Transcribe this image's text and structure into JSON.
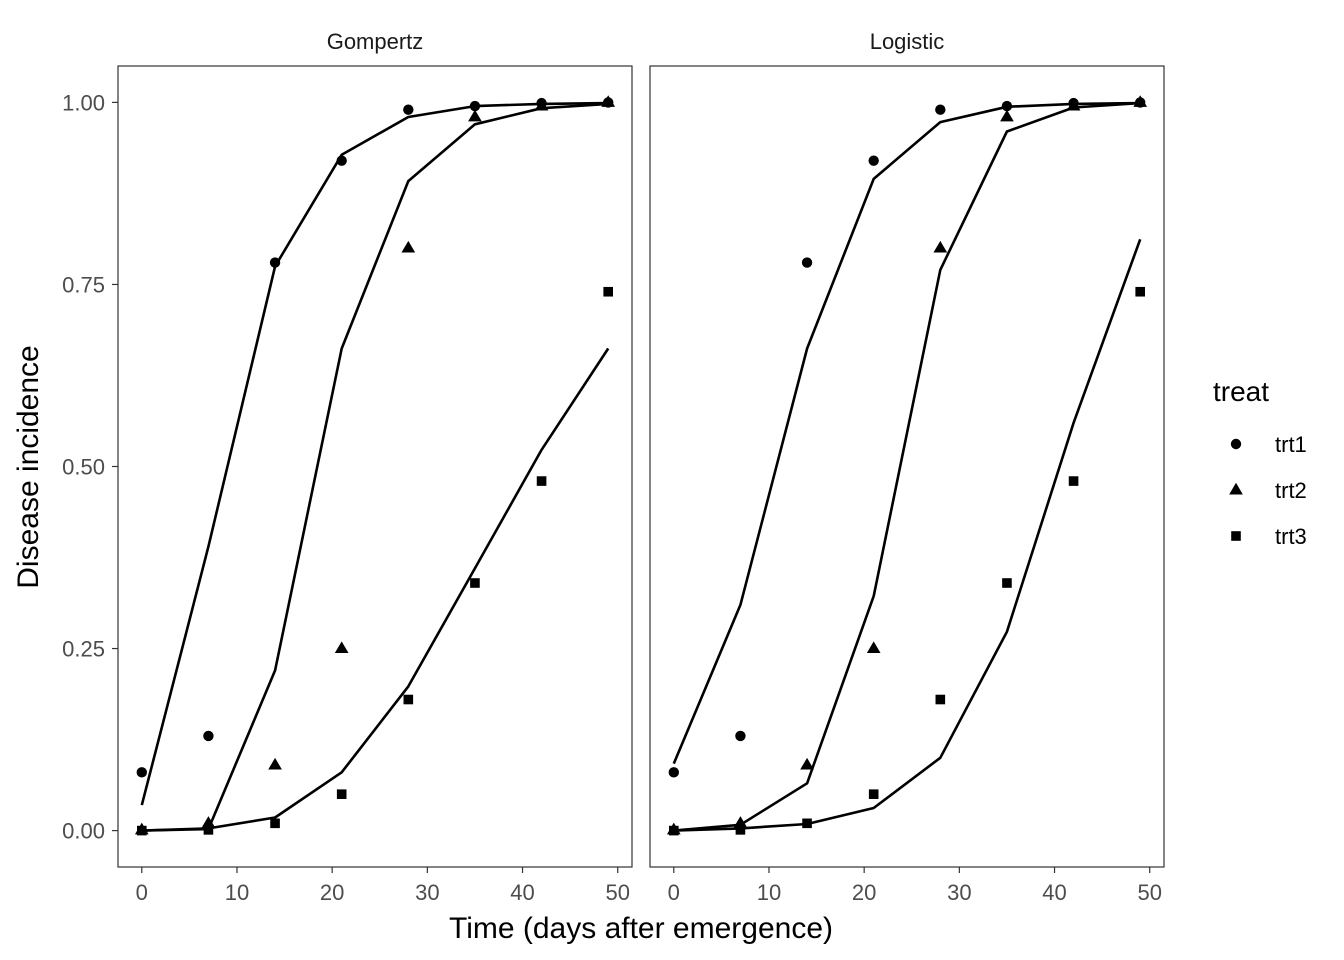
{
  "chart_data": {
    "type": "scatter",
    "xlabel": "Time (days after emergence)",
    "ylabel": "Disease incidence",
    "xlim": [
      -2.5,
      51.5
    ],
    "ylim": [
      -0.05,
      1.05
    ],
    "x_ticks": [
      0,
      10,
      20,
      30,
      40,
      50
    ],
    "y_ticks": [
      0,
      0.25,
      0.5,
      0.75,
      1.0
    ],
    "y_tick_labels": [
      "0.00",
      "0.25",
      "0.50",
      "0.75",
      "1.00"
    ],
    "grid": false,
    "legend": {
      "title": "treat",
      "placement": "right",
      "entries": [
        {
          "label": "trt1",
          "shape": "circle"
        },
        {
          "label": "trt2",
          "shape": "triangle"
        },
        {
          "label": "trt3",
          "shape": "square"
        }
      ]
    },
    "panels": [
      {
        "title": "Gompertz",
        "points": [
          {
            "name": "trt1",
            "x": [
              0,
              7,
              14,
              21,
              28,
              35,
              42,
              49
            ],
            "y": [
              0.08,
              0.13,
              0.78,
              0.92,
              0.99,
              0.995,
              0.999,
              1.0
            ]
          },
          {
            "name": "trt2",
            "x": [
              0,
              7,
              14,
              21,
              28,
              35,
              42,
              49
            ],
            "y": [
              0.001,
              0.01,
              0.09,
              0.25,
              0.8,
              0.98,
              0.995,
              1.0
            ]
          },
          {
            "name": "trt3",
            "x": [
              0,
              7,
              14,
              21,
              28,
              35,
              42,
              49
            ],
            "y": [
              0.0,
              0.001,
              0.01,
              0.05,
              0.18,
              0.34,
              0.48,
              0.74
            ]
          }
        ],
        "fits": [
          {
            "name": "trt1",
            "x": [
              0,
              7,
              14,
              21,
              28,
              35,
              42,
              49
            ],
            "y": [
              0.035,
              0.39,
              0.775,
              0.928,
              0.98,
              0.995,
              0.998,
              0.999
            ]
          },
          {
            "name": "trt2",
            "x": [
              0,
              7,
              14,
              21,
              28,
              35,
              42,
              49
            ],
            "y": [
              0.0,
              0.002,
              0.22,
              0.662,
              0.892,
              0.97,
              0.992,
              0.998
            ]
          },
          {
            "name": "trt3",
            "x": [
              0,
              7,
              14,
              21,
              28,
              35,
              42,
              49
            ],
            "y": [
              0.0,
              0.003,
              0.018,
              0.08,
              0.198,
              0.36,
              0.523,
              0.662
            ]
          }
        ]
      },
      {
        "title": "Logistic",
        "points": [
          {
            "name": "trt1",
            "x": [
              0,
              7,
              14,
              21,
              28,
              35,
              42,
              49
            ],
            "y": [
              0.08,
              0.13,
              0.78,
              0.92,
              0.99,
              0.995,
              0.999,
              1.0
            ]
          },
          {
            "name": "trt2",
            "x": [
              0,
              7,
              14,
              21,
              28,
              35,
              42,
              49
            ],
            "y": [
              0.001,
              0.01,
              0.09,
              0.25,
              0.8,
              0.98,
              0.995,
              1.0
            ]
          },
          {
            "name": "trt3",
            "x": [
              0,
              7,
              14,
              21,
              28,
              35,
              42,
              49
            ],
            "y": [
              0.0,
              0.001,
              0.01,
              0.05,
              0.18,
              0.34,
              0.48,
              0.74
            ]
          }
        ],
        "fits": [
          {
            "name": "trt1",
            "x": [
              0,
              7,
              14,
              21,
              28,
              35,
              42,
              49
            ],
            "y": [
              0.092,
              0.31,
              0.662,
              0.895,
              0.973,
              0.994,
              0.998,
              0.999
            ]
          },
          {
            "name": "trt2",
            "x": [
              0,
              7,
              14,
              21,
              28,
              35,
              42,
              49
            ],
            "y": [
              0.0,
              0.008,
              0.065,
              0.322,
              0.77,
              0.96,
              0.993,
              0.999
            ]
          },
          {
            "name": "trt3",
            "x": [
              0,
              7,
              14,
              21,
              28,
              35,
              42,
              49
            ],
            "y": [
              0.0,
              0.003,
              0.009,
              0.031,
              0.1,
              0.273,
              0.56,
              0.812
            ]
          }
        ]
      }
    ]
  }
}
